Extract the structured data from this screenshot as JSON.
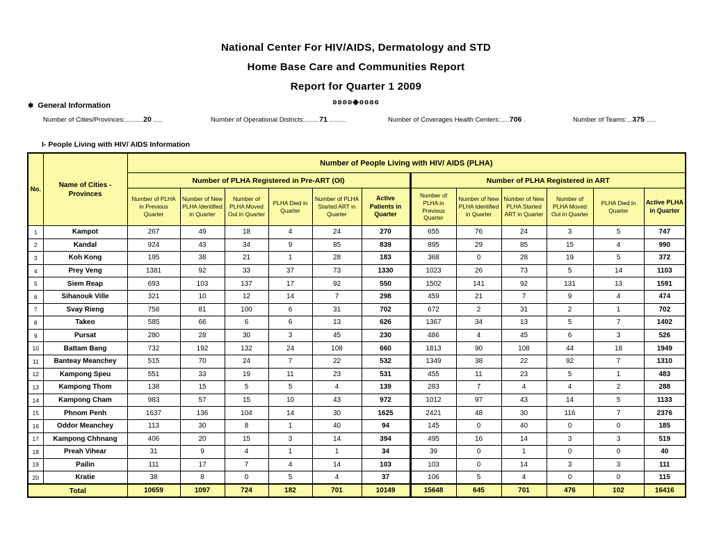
{
  "colors": {
    "header_bg": "#FAFAA8",
    "border": "#000000",
    "page_bg": "#FFFFFF"
  },
  "header": {
    "title1": "National Center For HIV/AIDS, Dermatology and STD",
    "title2": "Home Base Care and Communities Report",
    "title3": "Report  for Quarter 1  2009",
    "ornament": "ʚʚʚʚ◆ɞɞɞɞ"
  },
  "general_info": {
    "bullet": "✱",
    "heading": "General Information",
    "items": [
      {
        "label": "Number of Cities/Provinces:..........",
        "value": "20",
        "trail": " ....."
      },
      {
        "label": "Number of Operational Districts:........",
        "value": "71",
        "trail": " ........."
      },
      {
        "label": "Number of Coverages Health Centers:.....",
        "value": "706",
        "trail": " ."
      },
      {
        "label": "Number of Teams:...",
        "value": "375",
        "trail": " ....."
      }
    ]
  },
  "section_title": "I- People Living with HIV/ AIDS Information",
  "table": {
    "no_header": "No.",
    "name_header": "Name of Cities - Provinces",
    "top_header": "Number of People Living with HIV/ AIDS (PLHA)",
    "groups": [
      {
        "label": "Number of PLHA Registered in Pre-ART (OI)",
        "columns": [
          "Number of PLHA in Previous Quarter",
          "Number of New PLHA Identified in Quarter",
          "Number of PLHA Moved Out in Quarter",
          "PLHA Died in Quarter",
          "Number of PLHA Started ART in Quarter",
          "Active Patients in Quarter"
        ]
      },
      {
        "label": "Number of PLHA Registered in ART",
        "columns": [
          "Number of PLHA in Previous Quarter",
          "Number of New PLHA Identified in Quarter",
          "Number of New PLHA Started ART in Quarter",
          "Number of PLHA Moved Out in Quarter",
          "PLHA Died in Quarter",
          "Active PLHA in Quarter"
        ]
      }
    ],
    "rows": [
      {
        "no": 1,
        "name": "Kampot",
        "values": [
          267,
          49,
          18,
          4,
          24,
          270,
          655,
          76,
          24,
          3,
          5,
          747
        ]
      },
      {
        "no": 2,
        "name": "Kandal",
        "values": [
          924,
          43,
          34,
          9,
          85,
          839,
          895,
          29,
          85,
          15,
          4,
          990
        ]
      },
      {
        "no": 3,
        "name": "Koh Kong",
        "values": [
          195,
          38,
          21,
          1,
          28,
          183,
          368,
          0,
          28,
          19,
          5,
          372
        ]
      },
      {
        "no": 4,
        "name": "Prey Veng",
        "values": [
          1381,
          92,
          33,
          37,
          73,
          1330,
          1023,
          26,
          73,
          5,
          14,
          1103
        ]
      },
      {
        "no": 5,
        "name": "Siem Reap",
        "values": [
          693,
          103,
          137,
          17,
          92,
          550,
          1502,
          141,
          92,
          131,
          13,
          1591
        ]
      },
      {
        "no": 6,
        "name": "Sihanouk Ville",
        "values": [
          321,
          10,
          12,
          14,
          7,
          298,
          459,
          21,
          7,
          9,
          4,
          474
        ]
      },
      {
        "no": 7,
        "name": "Svay Rieng",
        "values": [
          758,
          81,
          100,
          6,
          31,
          702,
          672,
          2,
          31,
          2,
          1,
          702
        ]
      },
      {
        "no": 8,
        "name": "Takeo",
        "values": [
          585,
          66,
          6,
          6,
          13,
          626,
          1367,
          34,
          13,
          5,
          7,
          1402
        ]
      },
      {
        "no": 9,
        "name": "Pursat",
        "values": [
          280,
          28,
          30,
          3,
          45,
          230,
          486,
          4,
          45,
          6,
          3,
          526
        ]
      },
      {
        "no": 10,
        "name": "Battam Bang",
        "values": [
          732,
          192,
          132,
          24,
          108,
          660,
          1813,
          90,
          108,
          44,
          18,
          1949
        ]
      },
      {
        "no": 11,
        "name": "Banteay Meanchey",
        "values": [
          515,
          70,
          24,
          7,
          22,
          532,
          1349,
          38,
          22,
          92,
          7,
          1310
        ]
      },
      {
        "no": 12,
        "name": "Kampong Speu",
        "values": [
          551,
          33,
          19,
          11,
          23,
          531,
          455,
          11,
          23,
          5,
          1,
          483
        ]
      },
      {
        "no": 13,
        "name": "Kampong Thom",
        "values": [
          138,
          15,
          5,
          5,
          4,
          139,
          283,
          7,
          4,
          4,
          2,
          288
        ]
      },
      {
        "no": 14,
        "name": "Kampong Cham",
        "values": [
          983,
          57,
          15,
          10,
          43,
          972,
          1012,
          97,
          43,
          14,
          5,
          1133
        ]
      },
      {
        "no": 15,
        "name": "Phnom Penh",
        "values": [
          1637,
          136,
          104,
          14,
          30,
          1625,
          2421,
          48,
          30,
          116,
          7,
          2376
        ]
      },
      {
        "no": 16,
        "name": "Oddor Meanchey",
        "values": [
          113,
          30,
          8,
          1,
          40,
          94,
          145,
          0,
          40,
          0,
          0,
          185
        ]
      },
      {
        "no": 17,
        "name": "Kampong Chhnang",
        "values": [
          406,
          20,
          15,
          3,
          14,
          394,
          495,
          16,
          14,
          3,
          3,
          519
        ]
      },
      {
        "no": 18,
        "name": "Preah Vihear",
        "values": [
          31,
          9,
          4,
          1,
          1,
          34,
          39,
          0,
          1,
          0,
          0,
          40
        ]
      },
      {
        "no": 19,
        "name": "Pailin",
        "values": [
          111,
          17,
          7,
          4,
          14,
          103,
          103,
          0,
          14,
          3,
          3,
          111
        ]
      },
      {
        "no": 20,
        "name": "Kratie",
        "values": [
          38,
          8,
          0,
          5,
          4,
          37,
          106,
          5,
          4,
          0,
          0,
          115
        ]
      }
    ],
    "total_label": "Total",
    "totals": [
      10659,
      1097,
      724,
      182,
      701,
      10149,
      15648,
      645,
      701,
      476,
      102,
      16416
    ]
  }
}
